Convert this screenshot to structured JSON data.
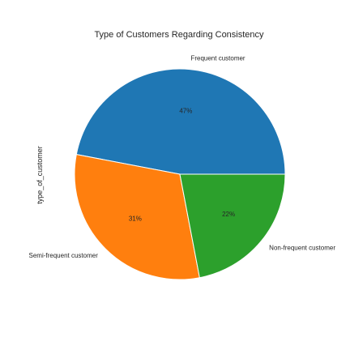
{
  "chart_data": {
    "type": "pie",
    "title": "Type of Customers Regarding Consistency",
    "ylabel": "type_of_customer",
    "categories": [
      "Frequent customer",
      "Semi-frequent customer",
      "Non-frequent customer"
    ],
    "values": [
      47,
      31,
      22
    ],
    "percent_labels": [
      "47%",
      "31%",
      "22%"
    ],
    "colors": [
      "#1f77b4",
      "#ff7f0e",
      "#2ca02c"
    ],
    "start_angle": "0 degrees (3 o'clock), counter-clockwise"
  }
}
